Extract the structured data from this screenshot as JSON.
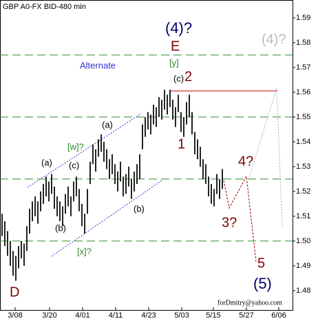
{
  "chart_data": {
    "type": "ohlc",
    "title": "GBP A0-FX BID-480 min",
    "footer": "forDmitry@yahoo.com",
    "x": [
      0,
      1,
      2,
      3,
      4,
      5,
      6,
      7,
      8,
      9,
      10,
      11,
      12,
      13,
      14,
      15,
      16,
      17,
      18,
      19,
      20,
      21,
      22,
      23,
      24,
      25,
      26,
      27,
      28,
      29,
      30,
      31,
      32,
      33,
      34,
      35,
      36,
      37,
      38,
      39,
      40,
      41,
      42,
      43,
      44,
      45,
      46,
      47,
      48,
      49,
      50,
      51,
      52,
      53,
      54,
      55,
      56,
      57,
      58,
      59,
      60,
      61,
      62,
      63,
      64,
      65,
      66,
      67,
      68,
      69,
      70,
      71,
      72,
      73,
      74,
      75,
      76,
      77,
      78,
      79,
      80
    ],
    "high": [
      1.511,
      1.508,
      1.504,
      1.5,
      1.496,
      1.494,
      1.498,
      1.5,
      1.499,
      1.506,
      1.513,
      1.516,
      1.518,
      1.516,
      1.52,
      1.523,
      1.526,
      1.524,
      1.527,
      1.522,
      1.518,
      1.516,
      1.514,
      1.519,
      1.522,
      1.518,
      1.524,
      1.526,
      1.521,
      1.515,
      1.511,
      1.521,
      1.532,
      1.539,
      1.537,
      1.541,
      1.543,
      1.54,
      1.537,
      1.533,
      1.535,
      1.531,
      1.528,
      1.532,
      1.526,
      1.527,
      1.53,
      1.525,
      1.528,
      1.531,
      1.535,
      1.547,
      1.55,
      1.552,
      1.551,
      1.555,
      1.554,
      1.558,
      1.557,
      1.561,
      1.559,
      1.561,
      1.557,
      1.554,
      1.559,
      1.552,
      1.55,
      1.556,
      1.559,
      1.552,
      1.544,
      1.541,
      1.538,
      1.533,
      1.531,
      1.526,
      1.523,
      1.521,
      1.527,
      1.525,
      1.529
    ],
    "low": [
      1.502,
      1.498,
      1.494,
      1.49,
      1.486,
      1.484,
      1.489,
      1.493,
      1.49,
      1.496,
      1.503,
      1.508,
      1.51,
      1.507,
      1.512,
      1.515,
      1.518,
      1.516,
      1.519,
      1.513,
      1.51,
      1.508,
      1.506,
      1.511,
      1.514,
      1.51,
      1.516,
      1.518,
      1.512,
      1.506,
      1.503,
      1.511,
      1.523,
      1.531,
      1.528,
      1.534,
      1.536,
      1.532,
      1.529,
      1.525,
      1.527,
      1.523,
      1.52,
      1.524,
      1.518,
      1.519,
      1.522,
      1.517,
      1.52,
      1.523,
      1.525,
      1.537,
      1.542,
      1.545,
      1.543,
      1.547,
      1.546,
      1.55,
      1.549,
      1.553,
      1.551,
      1.554,
      1.549,
      1.546,
      1.552,
      1.544,
      1.542,
      1.547,
      1.55,
      1.543,
      1.535,
      1.533,
      1.53,
      1.525,
      1.523,
      1.518,
      1.515,
      1.514,
      1.519,
      1.517,
      1.521
    ],
    "color": "#222222",
    "xlim": [
      -0.75,
      105.5
    ],
    "ylim": [
      1.4722,
      1.5972
    ],
    "xticks": [
      {
        "value": 4.75,
        "label": "3/08"
      },
      {
        "value": 17.25,
        "label": "3/20"
      },
      {
        "value": 29.25,
        "label": "4/01"
      },
      {
        "value": 41.25,
        "label": "4/11"
      },
      {
        "value": 53.25,
        "label": "4/23"
      },
      {
        "value": 65.25,
        "label": "5/03"
      },
      {
        "value": 76.75,
        "label": "5/15"
      },
      {
        "value": 88.75,
        "label": "5/27"
      },
      {
        "value": 100.5,
        "label": "6/06"
      }
    ],
    "yticks": [
      1.48,
      1.49,
      {
        "value": 1.5,
        "label": "1.50"
      },
      1.51,
      1.52,
      1.53,
      1.54,
      1.55,
      1.56,
      1.57,
      1.58,
      1.59
    ],
    "levels": [
      1.575,
      1.55,
      1.525,
      1.5
    ],
    "annotations": [
      "Alternate",
      "(4)?",
      "E",
      "[y]",
      "(c)",
      "2",
      "(a)",
      "[w]?",
      "(c)",
      "(a)",
      "(b)",
      "(b)",
      "1",
      "4?",
      "3?",
      "5",
      "(5)",
      "[x]?",
      "D",
      "(4)?"
    ]
  }
}
